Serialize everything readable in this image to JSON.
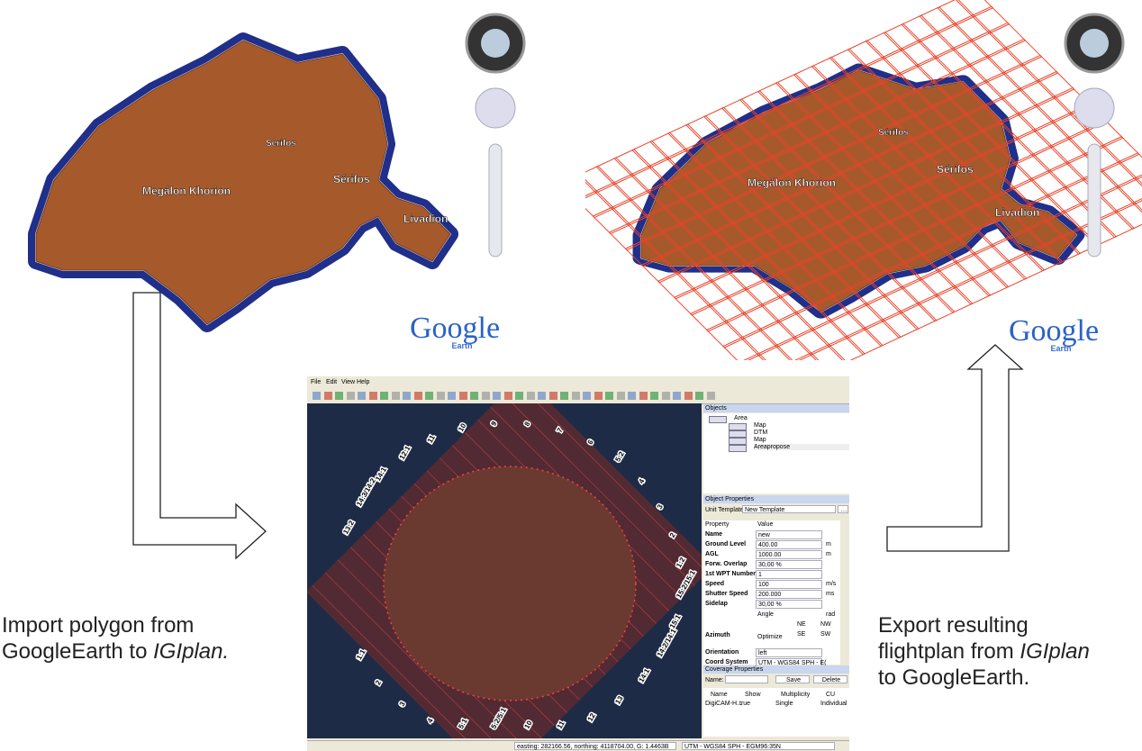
{
  "left_map": {
    "compass": "N",
    "labels": [
      "Serifos",
      "Sérifos",
      "Megálon Khorion",
      "Livadion"
    ],
    "logo": "Google",
    "logo_sub": "Earth"
  },
  "right_map": {
    "compass": "N",
    "labels": [
      "Sérifos",
      "Sérifos",
      "Megálon Khorion",
      "Livadion"
    ],
    "logo": "Google",
    "logo_sub": "Earth"
  },
  "igiplan": {
    "menu": [
      "File",
      "Edit",
      "View",
      "Help"
    ],
    "strip_labels": [
      "13:2",
      "14:3/14:2",
      "14:1",
      "12:1",
      "11",
      "10",
      "9",
      "8",
      "7",
      "6",
      "5:2",
      "4",
      "3",
      "2",
      "1:2",
      "15:2/15:1",
      "15:1",
      "14:2/14:1",
      "14:1",
      "13",
      "12",
      "11",
      "10",
      "5:2/5:1",
      "5:1",
      "4",
      "3",
      "2",
      "1:1"
    ],
    "objects": {
      "title": "Objects",
      "items": [
        "Area",
        "Map",
        "DTM",
        "Map",
        "Areapropose"
      ]
    },
    "object_properties": {
      "title": "Object Properties",
      "unit_template_label": "Unit Template:",
      "unit_template": "New Template",
      "header": [
        "Property",
        "Value"
      ],
      "rows": [
        {
          "property": "Name",
          "value": "new"
        },
        {
          "property": "Ground Level",
          "value": "400.00",
          "unit": "m"
        },
        {
          "property": "AGL",
          "value": "1000.00",
          "unit": "m"
        },
        {
          "property": "Forw. Overlap",
          "value": "30,00 %"
        },
        {
          "property": "1st WPT Number",
          "value": "1"
        },
        {
          "property": "Speed",
          "value": "100",
          "unit": "m/s"
        },
        {
          "property": "Shutter Speed",
          "value": "200.000",
          "unit": "ms"
        },
        {
          "property": "Sidelap",
          "value": "30,00 %"
        }
      ],
      "azimuth": {
        "label": "Azimuth",
        "angle": "Angle",
        "unit": "rad",
        "optimize": "Optimize",
        "directions": [
          "NE",
          "NW",
          "SE",
          "SW"
        ]
      },
      "orientation": {
        "property": "Orientation",
        "value": "left"
      },
      "coord_system": {
        "property": "Coord System",
        "value": "UTM - WGS84 SPH - E("
      }
    },
    "coverage": {
      "title": "Coverage Properties",
      "name_label": "Name:",
      "save": "Save",
      "delete": "Delete",
      "header": [
        "Name",
        "Show",
        "Multiplicity",
        "CU"
      ],
      "row": [
        "DigiCAM-H...",
        "true",
        "Single",
        "Individual"
      ]
    },
    "status": {
      "position": "easting: 282166.56, northing: 4118704.00, G: 1.4463B",
      "coords": "UTM - WGS84 SPH - EGM96:35N"
    }
  },
  "captions": {
    "import": {
      "line1": "Import polygon from",
      "line2": "GoogleEarth to ",
      "italic": "IGIplan."
    },
    "export": {
      "line1": "Export resulting",
      "line2": "flightplan from ",
      "italic": "IGIplan",
      "line3": "to GoogleEarth."
    }
  }
}
